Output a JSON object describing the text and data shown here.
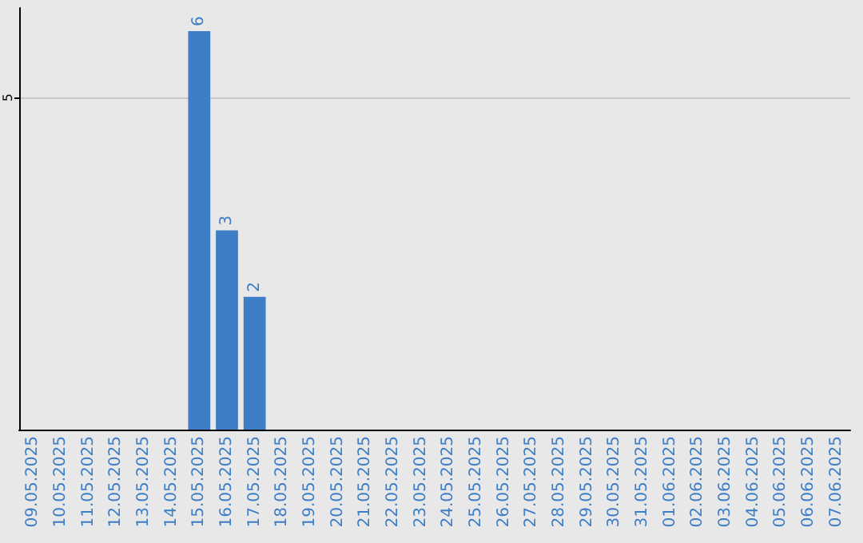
{
  "chart_data": {
    "type": "bar",
    "categories": [
      "09.05.2025",
      "10.05.2025",
      "11.05.2025",
      "12.05.2025",
      "13.05.2025",
      "14.05.2025",
      "15.05.2025",
      "16.05.2025",
      "17.05.2025",
      "18.05.2025",
      "19.05.2025",
      "20.05.2025",
      "21.05.2025",
      "22.05.2025",
      "23.05.2025",
      "24.05.2025",
      "25.05.2025",
      "26.05.2025",
      "27.05.2025",
      "28.05.2025",
      "29.05.2025",
      "30.05.2025",
      "31.05.2025",
      "01.06.2025",
      "02.06.2025",
      "03.06.2025",
      "04.06.2025",
      "05.06.2025",
      "06.06.2025",
      "07.06.2025"
    ],
    "values": [
      0,
      0,
      0,
      0,
      0,
      0,
      6,
      3,
      2,
      0,
      0,
      0,
      0,
      0,
      0,
      0,
      0,
      0,
      0,
      0,
      0,
      0,
      0,
      0,
      0,
      0,
      0,
      0,
      0,
      0
    ],
    "value_labels": [
      null,
      null,
      null,
      null,
      null,
      null,
      "6",
      "3",
      "2",
      null,
      null,
      null,
      null,
      null,
      null,
      null,
      null,
      null,
      null,
      null,
      null,
      null,
      null,
      null,
      null,
      null,
      null,
      null,
      null,
      null
    ],
    "color": "#3d7ec6",
    "ylim": [
      0,
      6.35
    ],
    "yticks": [
      5
    ],
    "grid": "y"
  }
}
